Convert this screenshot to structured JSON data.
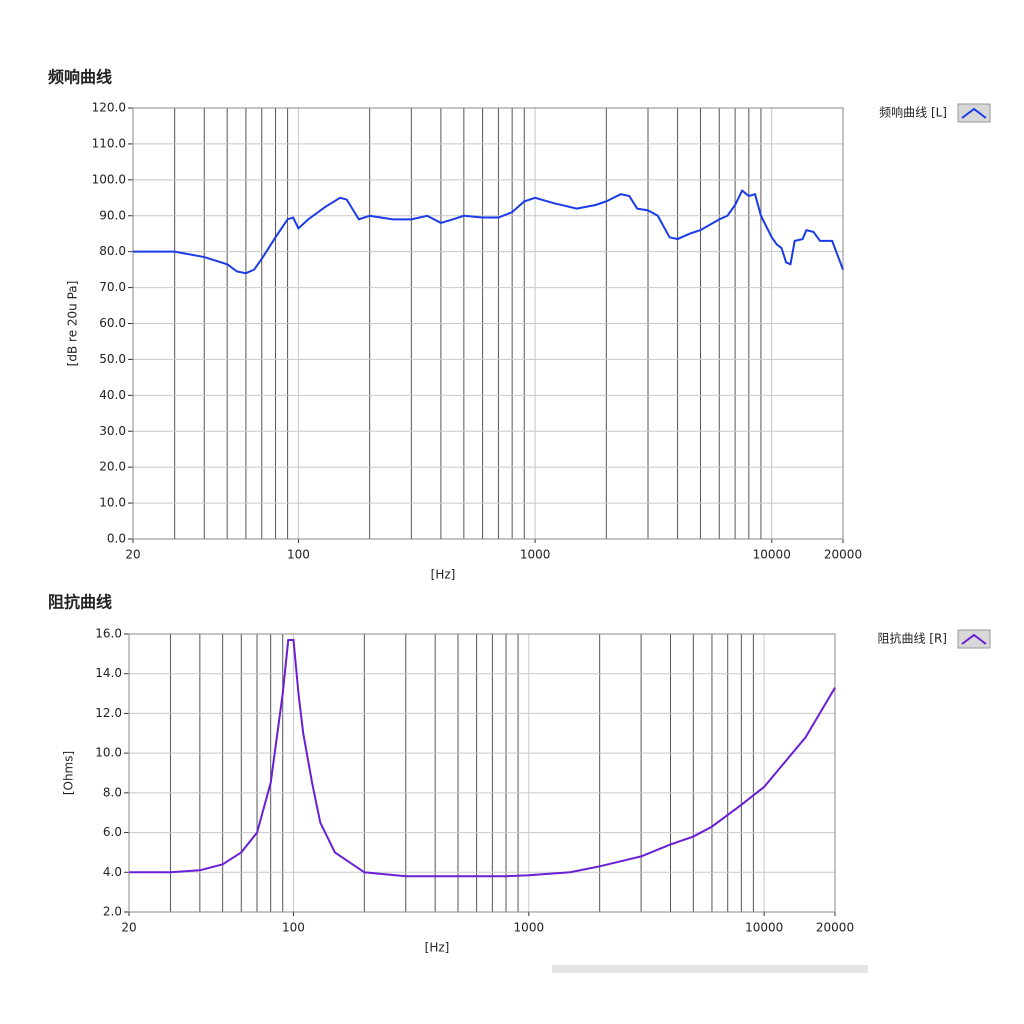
{
  "chart_data": [
    {
      "type": "line",
      "title": "频响曲线",
      "xlabel": "[Hz]",
      "ylabel": "[dB re 20u Pa]",
      "xscale": "log",
      "grid": true,
      "legend": "right",
      "xlim": [
        20,
        20000
      ],
      "xticks": [
        20,
        100,
        1000,
        10000,
        20000
      ],
      "xminorticks": [
        30,
        40,
        50,
        60,
        70,
        80,
        90,
        200,
        300,
        400,
        500,
        600,
        700,
        800,
        900,
        2000,
        3000,
        4000,
        5000,
        6000,
        7000,
        8000,
        9000
      ],
      "ylim": [
        0,
        120
      ],
      "yticks": [
        {
          "value": 0,
          "label": "0.0"
        },
        {
          "value": 10,
          "label": "10.0"
        },
        {
          "value": 20,
          "label": "20.0"
        },
        {
          "value": 30,
          "label": "30.0"
        },
        {
          "value": 40,
          "label": "40.0"
        },
        {
          "value": 50,
          "label": "50.0"
        },
        {
          "value": 60,
          "label": "60.0"
        },
        {
          "value": 70,
          "label": "70.0"
        },
        {
          "value": 80,
          "label": "80.0"
        },
        {
          "value": 90,
          "label": "90.0"
        },
        {
          "value": 100,
          "label": "100.0"
        },
        {
          "value": 110,
          "label": "110.0"
        },
        {
          "value": 120,
          "label": "120.0"
        }
      ],
      "x": [
        20,
        30,
        40,
        50,
        55,
        60,
        65,
        70,
        80,
        90,
        95,
        100,
        110,
        130,
        150,
        160,
        180,
        200,
        250,
        300,
        350,
        400,
        450,
        500,
        600,
        700,
        800,
        900,
        1000,
        1200,
        1500,
        1800,
        2000,
        2300,
        2500,
        2700,
        3000,
        3300,
        3700,
        4000,
        4500,
        5000,
        6000,
        6500,
        7000,
        7500,
        8000,
        8500,
        9000,
        10000,
        10500,
        11000,
        11500,
        12000,
        12500,
        13500,
        14000,
        15000,
        16000,
        18000,
        20000
      ],
      "series": [
        {
          "name": "频响曲线 [L]",
          "color": "#1a3be8",
          "values": [
            80,
            80,
            78.5,
            76.5,
            74.5,
            74,
            75,
            78,
            84,
            89,
            89.5,
            86.5,
            89,
            92.5,
            95,
            94.5,
            89,
            90,
            89,
            89,
            90,
            88,
            89,
            90,
            89.5,
            89.5,
            91,
            94,
            95,
            93.5,
            92,
            93,
            94,
            96,
            95.5,
            92,
            91.5,
            90,
            84,
            83.5,
            85,
            86,
            89,
            90,
            93,
            97,
            95.5,
            96,
            90,
            84,
            82,
            81,
            77,
            76.5,
            83,
            83.5,
            86,
            85.5,
            83,
            83,
            75
          ]
        }
      ]
    },
    {
      "type": "line",
      "title": "阻抗曲线",
      "xlabel": "[Hz]",
      "ylabel": "[Ohms]",
      "xscale": "log",
      "grid": true,
      "legend": "right",
      "xlim": [
        20,
        20000
      ],
      "xticks": [
        20,
        100,
        1000,
        10000,
        20000
      ],
      "xminorticks": [
        30,
        40,
        50,
        60,
        70,
        80,
        90,
        200,
        300,
        400,
        500,
        600,
        700,
        800,
        900,
        2000,
        3000,
        4000,
        5000,
        6000,
        7000,
        8000,
        9000
      ],
      "ylim": [
        2,
        16
      ],
      "yticks": [
        {
          "value": 2,
          "label": "2.0"
        },
        {
          "value": 4,
          "label": "4.0"
        },
        {
          "value": 6,
          "label": "6.0"
        },
        {
          "value": 8,
          "label": "8.0"
        },
        {
          "value": 10,
          "label": "10.0"
        },
        {
          "value": 12,
          "label": "12.0"
        },
        {
          "value": 14,
          "label": "14.0"
        },
        {
          "value": 16,
          "label": "16.0"
        }
      ],
      "x": [
        20,
        30,
        40,
        50,
        60,
        70,
        80,
        90,
        95,
        100,
        105,
        110,
        120,
        130,
        150,
        200,
        300,
        500,
        800,
        1000,
        1500,
        2000,
        3000,
        4000,
        5000,
        6000,
        8000,
        10000,
        15000,
        20000
      ],
      "series": [
        {
          "name": "阻抗曲线 [R]",
          "color": "#6a1fd6",
          "values": [
            4.0,
            4.0,
            4.1,
            4.4,
            5.0,
            6.0,
            8.5,
            13,
            15.7,
            15.7,
            13,
            11,
            8.5,
            6.5,
            5.0,
            4.0,
            3.8,
            3.8,
            3.8,
            3.85,
            4.0,
            4.3,
            4.8,
            5.4,
            5.8,
            6.3,
            7.4,
            8.3,
            10.8,
            13.3
          ]
        }
      ]
    }
  ]
}
